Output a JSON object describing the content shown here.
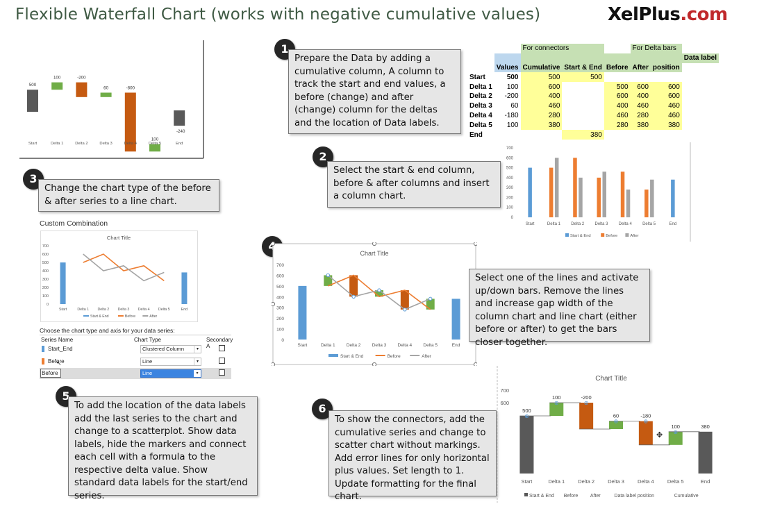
{
  "header": {
    "title": "Flexible Waterfall Chart (works with negative cumulative values)",
    "brand_main": "XelPlus",
    "brand_suffix": ".com"
  },
  "steps": [
    {
      "num": "1",
      "text": "Prepare the Data by adding a cumulative column, A column to track the start and end values, a before (change) and after (change) column for the deltas and the location of Data labels."
    },
    {
      "num": "2",
      "text": "Select the start & end column, before & after columns and insert a column chart."
    },
    {
      "num": "3",
      "text": "Change the chart type of the before & after series to a line chart."
    },
    {
      "num": "4",
      "text": "Select one of the lines and activate up/down bars. Remove the lines and increase gap width of the column chart and line chart (either before or after) to get the bars closer together."
    },
    {
      "num": "5",
      "text": "To add the location of the data labels add the last series to the chart and change to a scatterplot. Show data labels, hide the markers and connect each cell with a formula to the respective delta value. Show standard data labels for the start/end series."
    },
    {
      "num": "6",
      "text": "To show the connectors, add the cumulative series and change to scatter chart without markings. Add error lines for only horizontal plus values.  Set length to 1. Update formatting for the final chart."
    }
  ],
  "table": {
    "group_connectors": "For connectors",
    "group_delta": "For Delta bars",
    "headers": [
      "Values",
      "Cumulative",
      "Start & End",
      "Before",
      "After",
      "Data label",
      "position"
    ],
    "rows": [
      {
        "label": "Start",
        "values": "500",
        "cumulative": "500",
        "start_end": "500",
        "before": "",
        "after": "",
        "label_pos": ""
      },
      {
        "label": "Delta 1",
        "values": "100",
        "cumulative": "600",
        "start_end": "",
        "before": "500",
        "after": "600",
        "label_pos": "600"
      },
      {
        "label": "Delta 2",
        "values": "-200",
        "cumulative": "400",
        "start_end": "",
        "before": "600",
        "after": "400",
        "label_pos": "600"
      },
      {
        "label": "Delta 3",
        "values": "60",
        "cumulative": "460",
        "start_end": "",
        "before": "400",
        "after": "460",
        "label_pos": "460"
      },
      {
        "label": "Delta 4",
        "values": "-180",
        "cumulative": "280",
        "start_end": "",
        "before": "460",
        "after": "280",
        "label_pos": "460"
      },
      {
        "label": "Delta 5",
        "values": "100",
        "cumulative": "380",
        "start_end": "",
        "before": "280",
        "after": "380",
        "label_pos": "380"
      },
      {
        "label": "End",
        "values": "",
        "cumulative": "",
        "start_end": "380",
        "before": "",
        "after": "",
        "label_pos": ""
      }
    ]
  },
  "dialog": {
    "title": "Custom Combination",
    "prompt": "Choose the chart type and axis for your data series:",
    "col_series": "Series Name",
    "col_type": "Chart Type",
    "col_secondary": "Secondary A",
    "rows": [
      {
        "name": "Start_End",
        "type": "Clustered Column",
        "color": "#5b9bd5"
      },
      {
        "name": "Before",
        "type": "Line",
        "color": "#ed7d31"
      },
      {
        "name": "Before",
        "type": "Line",
        "color": ""
      }
    ]
  },
  "chart_data": [
    {
      "type": "bar",
      "id": "waterfall-preview",
      "categories": [
        "Start",
        "Delta 1",
        "Delta 2",
        "Delta 3",
        "Delta 4",
        "Delta 5",
        "End"
      ],
      "values": [
        500,
        100,
        -200,
        60,
        -800,
        100,
        -240
      ],
      "labels": [
        "500",
        "100",
        "-200",
        "60",
        "-800",
        "100",
        "-240"
      ],
      "colors": {
        "total": "#595959",
        "up": "#70ad47",
        "down": "#c55a11"
      }
    },
    {
      "type": "bar",
      "id": "column-chart",
      "categories": [
        "Start",
        "Delta 1",
        "Delta 2",
        "Delta 3",
        "Delta 4",
        "Delta 5",
        "End"
      ],
      "series": [
        {
          "name": "Start & End",
          "values": [
            500,
            null,
            null,
            null,
            null,
            null,
            380
          ],
          "color": "#5b9bd5"
        },
        {
          "name": "Before",
          "values": [
            null,
            500,
            600,
            400,
            460,
            280,
            null
          ],
          "color": "#ed7d31"
        },
        {
          "name": "After",
          "values": [
            null,
            600,
            400,
            460,
            280,
            380,
            null
          ],
          "color": "#a5a5a5"
        }
      ],
      "ylim": [
        0,
        700
      ],
      "yticks": [
        0,
        100,
        200,
        300,
        400,
        500,
        600,
        700
      ]
    },
    {
      "type": "line",
      "id": "combination-chart",
      "title": "Chart Title",
      "categories": [
        "Start",
        "Delta 1",
        "Delta 2",
        "Delta 3",
        "Delta 4",
        "Delta 5",
        "End"
      ],
      "series": [
        {
          "name": "Start & End",
          "values": [
            500,
            null,
            null,
            null,
            null,
            null,
            380
          ],
          "color": "#5b9bd5"
        },
        {
          "name": "Before",
          "values": [
            null,
            500,
            600,
            400,
            460,
            280,
            null
          ],
          "color": "#ed7d31"
        },
        {
          "name": "After",
          "values": [
            null,
            600,
            400,
            460,
            280,
            380,
            null
          ],
          "color": "#a5a5a5"
        }
      ],
      "ylim": [
        0,
        700
      ],
      "yticks": [
        0,
        100,
        200,
        300,
        400,
        500,
        600,
        700
      ]
    },
    {
      "type": "bar",
      "id": "updown-chart",
      "title": "Chart Title",
      "categories": [
        "Start",
        "Delta 1",
        "Delta 2",
        "Delta 3",
        "Delta 4",
        "Delta 5",
        "End"
      ],
      "series": [
        {
          "name": "Start & End",
          "values": [
            500,
            null,
            null,
            null,
            null,
            null,
            380
          ],
          "color": "#5b9bd5"
        },
        {
          "name": "Before",
          "values": [
            null,
            500,
            600,
            400,
            460,
            280,
            null
          ],
          "color": "#ed7d31"
        },
        {
          "name": "After",
          "values": [
            null,
            600,
            400,
            460,
            280,
            380,
            null
          ],
          "color": "#a5a5a5"
        }
      ],
      "ylim": [
        0,
        700
      ],
      "yticks": [
        0,
        100,
        200,
        300,
        400,
        500,
        600,
        700
      ]
    },
    {
      "type": "bar",
      "id": "final-chart",
      "title": "Chart Title",
      "categories": [
        "Start",
        "Delta 1",
        "Delta 2",
        "Delta 3",
        "Delta 4",
        "Delta 5",
        "End"
      ],
      "start_end": [
        500,
        null,
        null,
        null,
        null,
        null,
        380
      ],
      "before": [
        null,
        500,
        600,
        400,
        460,
        280,
        null
      ],
      "after": [
        null,
        600,
        400,
        460,
        280,
        380,
        null
      ],
      "cumulative": [
        500,
        600,
        400,
        460,
        280,
        380,
        null
      ],
      "labels": [
        "500",
        "100",
        "-200",
        "60",
        "-180",
        "100",
        "380"
      ],
      "yticks": [
        600,
        700
      ],
      "legend": [
        "Start & End",
        "Before",
        "After",
        "Data label position",
        "Cumulative"
      ],
      "colors": {
        "total": "#595959",
        "up": "#70ad47",
        "down": "#c55a11"
      }
    }
  ]
}
